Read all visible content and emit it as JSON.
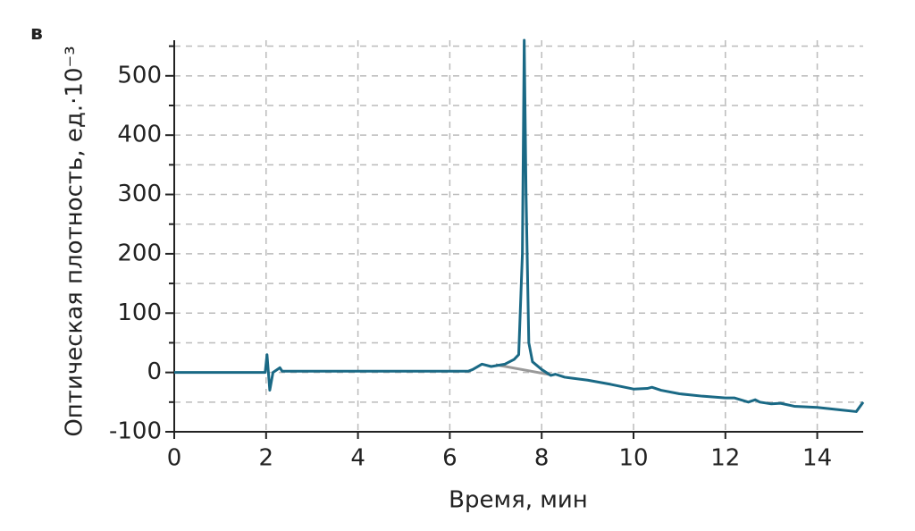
{
  "panel_label": "в",
  "chart_data": {
    "type": "line",
    "y_label": "Оптическая плотность, ед.·10⁻³",
    "x_label": "Время, мин",
    "xlim": [
      0,
      15
    ],
    "xticks": [
      0,
      2,
      4,
      6,
      8,
      10,
      12,
      14
    ],
    "ylim": [
      -100,
      560
    ],
    "yticks": [
      -100,
      0,
      100,
      200,
      300,
      400,
      500
    ],
    "y_minor_grid": [
      -50,
      50,
      150,
      250,
      350,
      450,
      550
    ],
    "grid": true,
    "series": [
      {
        "color": "#999999",
        "x": [
          7.0,
          8.2
        ],
        "values": [
          13,
          -4
        ]
      },
      {
        "color": "#1a6985",
        "x": [
          0,
          1.98,
          2.02,
          2.08,
          2.15,
          2.3,
          2.35,
          6.4,
          6.5,
          6.7,
          6.9,
          7.2,
          7.4,
          7.5,
          7.58,
          7.62,
          7.66,
          7.72,
          7.8,
          8.0,
          8.2,
          8.3,
          8.5,
          9.0,
          9.5,
          10.0,
          10.3,
          10.4,
          10.6,
          11.0,
          11.5,
          12.0,
          12.2,
          12.5,
          12.65,
          12.75,
          13.0,
          13.2,
          13.5,
          14.0,
          14.5,
          14.85,
          15.0
        ],
        "values": [
          0,
          0,
          30,
          -30,
          0,
          8,
          2,
          2,
          5,
          14,
          10,
          14,
          22,
          30,
          200,
          560,
          300,
          50,
          18,
          5,
          -5,
          -3,
          -8,
          -13,
          -20,
          -28,
          -27,
          -25,
          -30,
          -36,
          -40,
          -43,
          -43,
          -50,
          -46,
          -50,
          -53,
          -52,
          -57,
          -59,
          -63,
          -66,
          -50
        ]
      }
    ]
  }
}
